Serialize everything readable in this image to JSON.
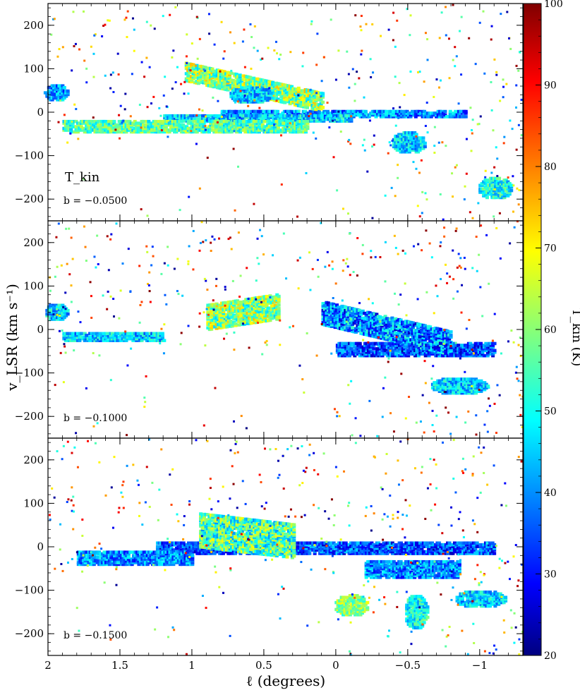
{
  "chart_data": {
    "type": "heatmap",
    "x_axis": {
      "label": "ℓ (degrees)",
      "range": [
        2.0,
        -1.3
      ],
      "ticks": [
        2,
        1.5,
        1,
        0.5,
        0,
        -0.5,
        -1
      ],
      "tick_labels": [
        "2",
        "1.5",
        "1",
        "0.5",
        "0",
        "−0.5",
        "−1"
      ]
    },
    "y_axis": {
      "label": "v_LSR (km s⁻¹)",
      "range": [
        -250,
        250
      ],
      "ticks": [
        -200,
        -100,
        0,
        100,
        200
      ],
      "tick_labels": [
        "−200",
        "−100",
        "0",
        "100",
        "200"
      ]
    },
    "colorbar": {
      "label": "T_kin (K)",
      "range": [
        20,
        100
      ],
      "ticks": [
        20,
        30,
        40,
        50,
        60,
        70,
        80,
        90,
        100
      ],
      "colormap": "jet"
    },
    "panels": [
      {
        "label": "b = −0.0500",
        "tag": "T_kin",
        "structures": [
          {
            "kind": "band",
            "l": [
              0.8,
              -0.9
            ],
            "v": [
              -10,
              5
            ],
            "T": 40
          },
          {
            "kind": "band",
            "l": [
              1.2,
              -0.1
            ],
            "v": [
              -20,
              -5
            ],
            "T": 45
          },
          {
            "kind": "band",
            "l": [
              1.9,
              0.2
            ],
            "v": [
              -45,
              -20
            ],
            "T": 55
          },
          {
            "kind": "ridge",
            "l": [
              1.05,
              0.1
            ],
            "v_start": 95,
            "v_end": 25,
            "width": 22,
            "T": 60
          },
          {
            "kind": "blob",
            "l": 0.6,
            "v": 40,
            "dl": 0.15,
            "dv": 20,
            "T": 45
          },
          {
            "kind": "blob",
            "l": 1.95,
            "v": 45,
            "dl": 0.08,
            "dv": 20,
            "T": 40
          },
          {
            "kind": "blob",
            "l": -0.5,
            "v": -70,
            "dl": 0.12,
            "dv": 25,
            "T": 45
          },
          {
            "kind": "blob",
            "l": -1.1,
            "v": -175,
            "dl": 0.12,
            "dv": 25,
            "T": 50
          }
        ]
      },
      {
        "label": "b = −0.1000",
        "tag": "",
        "structures": [
          {
            "kind": "band",
            "l": [
              0.0,
              -1.1
            ],
            "v": [
              -60,
              -30
            ],
            "T": 35
          },
          {
            "kind": "ridge",
            "l": [
              0.9,
              0.4
            ],
            "v_start": 30,
            "v_end": 55,
            "width": 30,
            "T": 60
          },
          {
            "kind": "ridge",
            "l": [
              0.1,
              -0.8
            ],
            "v_start": 40,
            "v_end": -30,
            "width": 28,
            "T": 40
          },
          {
            "kind": "band",
            "l": [
              1.9,
              1.2
            ],
            "v": [
              -25,
              -5
            ],
            "T": 45
          },
          {
            "kind": "blob",
            "l": 1.95,
            "v": 40,
            "dl": 0.08,
            "dv": 20,
            "T": 45
          },
          {
            "kind": "blob",
            "l": -0.85,
            "v": -130,
            "dl": 0.2,
            "dv": 20,
            "T": 45
          }
        ]
      },
      {
        "label": "b = −0.1500",
        "tag": "",
        "structures": [
          {
            "kind": "band",
            "l": [
              1.25,
              -1.1
            ],
            "v": [
              -15,
              10
            ],
            "T": 35
          },
          {
            "kind": "band",
            "l": [
              1.8,
              1.0
            ],
            "v": [
              -40,
              -10
            ],
            "T": 40
          },
          {
            "kind": "ridge",
            "l": [
              0.95,
              0.3
            ],
            "v_start": 40,
            "v_end": 15,
            "width": 40,
            "T": 55
          },
          {
            "kind": "band",
            "l": [
              -0.2,
              -0.85
            ],
            "v": [
              -70,
              -30
            ],
            "T": 40
          },
          {
            "kind": "blob",
            "l": -0.55,
            "v": -150,
            "dl": 0.08,
            "dv": 40,
            "T": 50
          },
          {
            "kind": "blob",
            "l": -0.1,
            "v": -135,
            "dl": 0.12,
            "dv": 25,
            "T": 60
          },
          {
            "kind": "blob",
            "l": -1.0,
            "v": -120,
            "dl": 0.18,
            "dv": 20,
            "T": 45
          }
        ]
      }
    ]
  }
}
